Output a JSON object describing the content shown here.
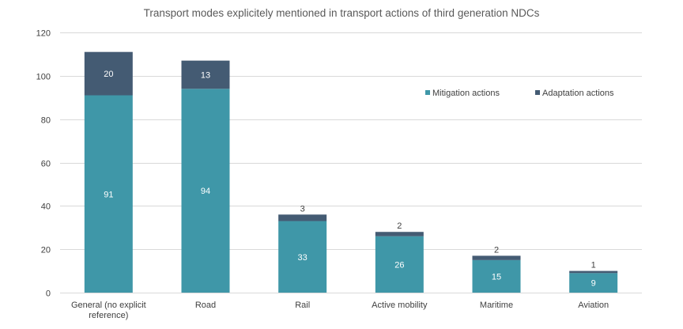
{
  "chart_data": {
    "type": "bar",
    "stacked": true,
    "title": "Transport modes explicitely mentioned in transport actions of third generation NDCs",
    "categories": [
      [
        "General (no explicit",
        "reference)"
      ],
      [
        "Road"
      ],
      [
        "Rail"
      ],
      [
        "Active mobility"
      ],
      [
        "Maritime"
      ],
      [
        "Aviation"
      ]
    ],
    "series": [
      {
        "name": "Mitigation actions",
        "color": "#3f97a8",
        "values": [
          91,
          94,
          33,
          26,
          15,
          9
        ]
      },
      {
        "name": "Adaptation actions",
        "color": "#445b73",
        "values": [
          20,
          13,
          3,
          2,
          2,
          1
        ]
      }
    ],
    "ylim": [
      0,
      120
    ],
    "yticks": [
      0,
      20,
      40,
      60,
      80,
      100,
      120
    ],
    "grid": true,
    "legend_position": "top-right"
  }
}
